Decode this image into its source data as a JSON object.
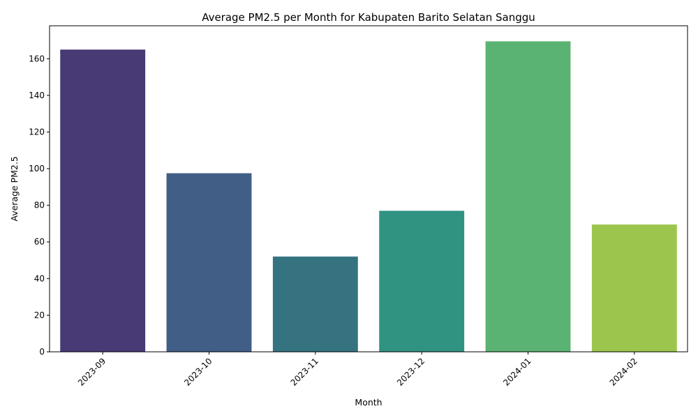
{
  "chart_data": {
    "type": "bar",
    "title": "Average PM2.5 per Month for Kabupaten Barito Selatan Sanggu",
    "xlabel": "Month",
    "ylabel": "Average PM2.5",
    "categories": [
      "2023-09",
      "2023-10",
      "2023-11",
      "2023-12",
      "2024-01",
      "2024-02"
    ],
    "values": [
      165,
      97.5,
      52,
      77,
      169.5,
      69.5
    ],
    "colors": [
      "#483a75",
      "#415e87",
      "#34737f",
      "#309382",
      "#5bb373",
      "#9bc54d"
    ],
    "ylim": [
      0,
      178
    ],
    "yticks": [
      0,
      20,
      40,
      60,
      80,
      100,
      120,
      140,
      160
    ],
    "grid": false,
    "legend": "none"
  }
}
